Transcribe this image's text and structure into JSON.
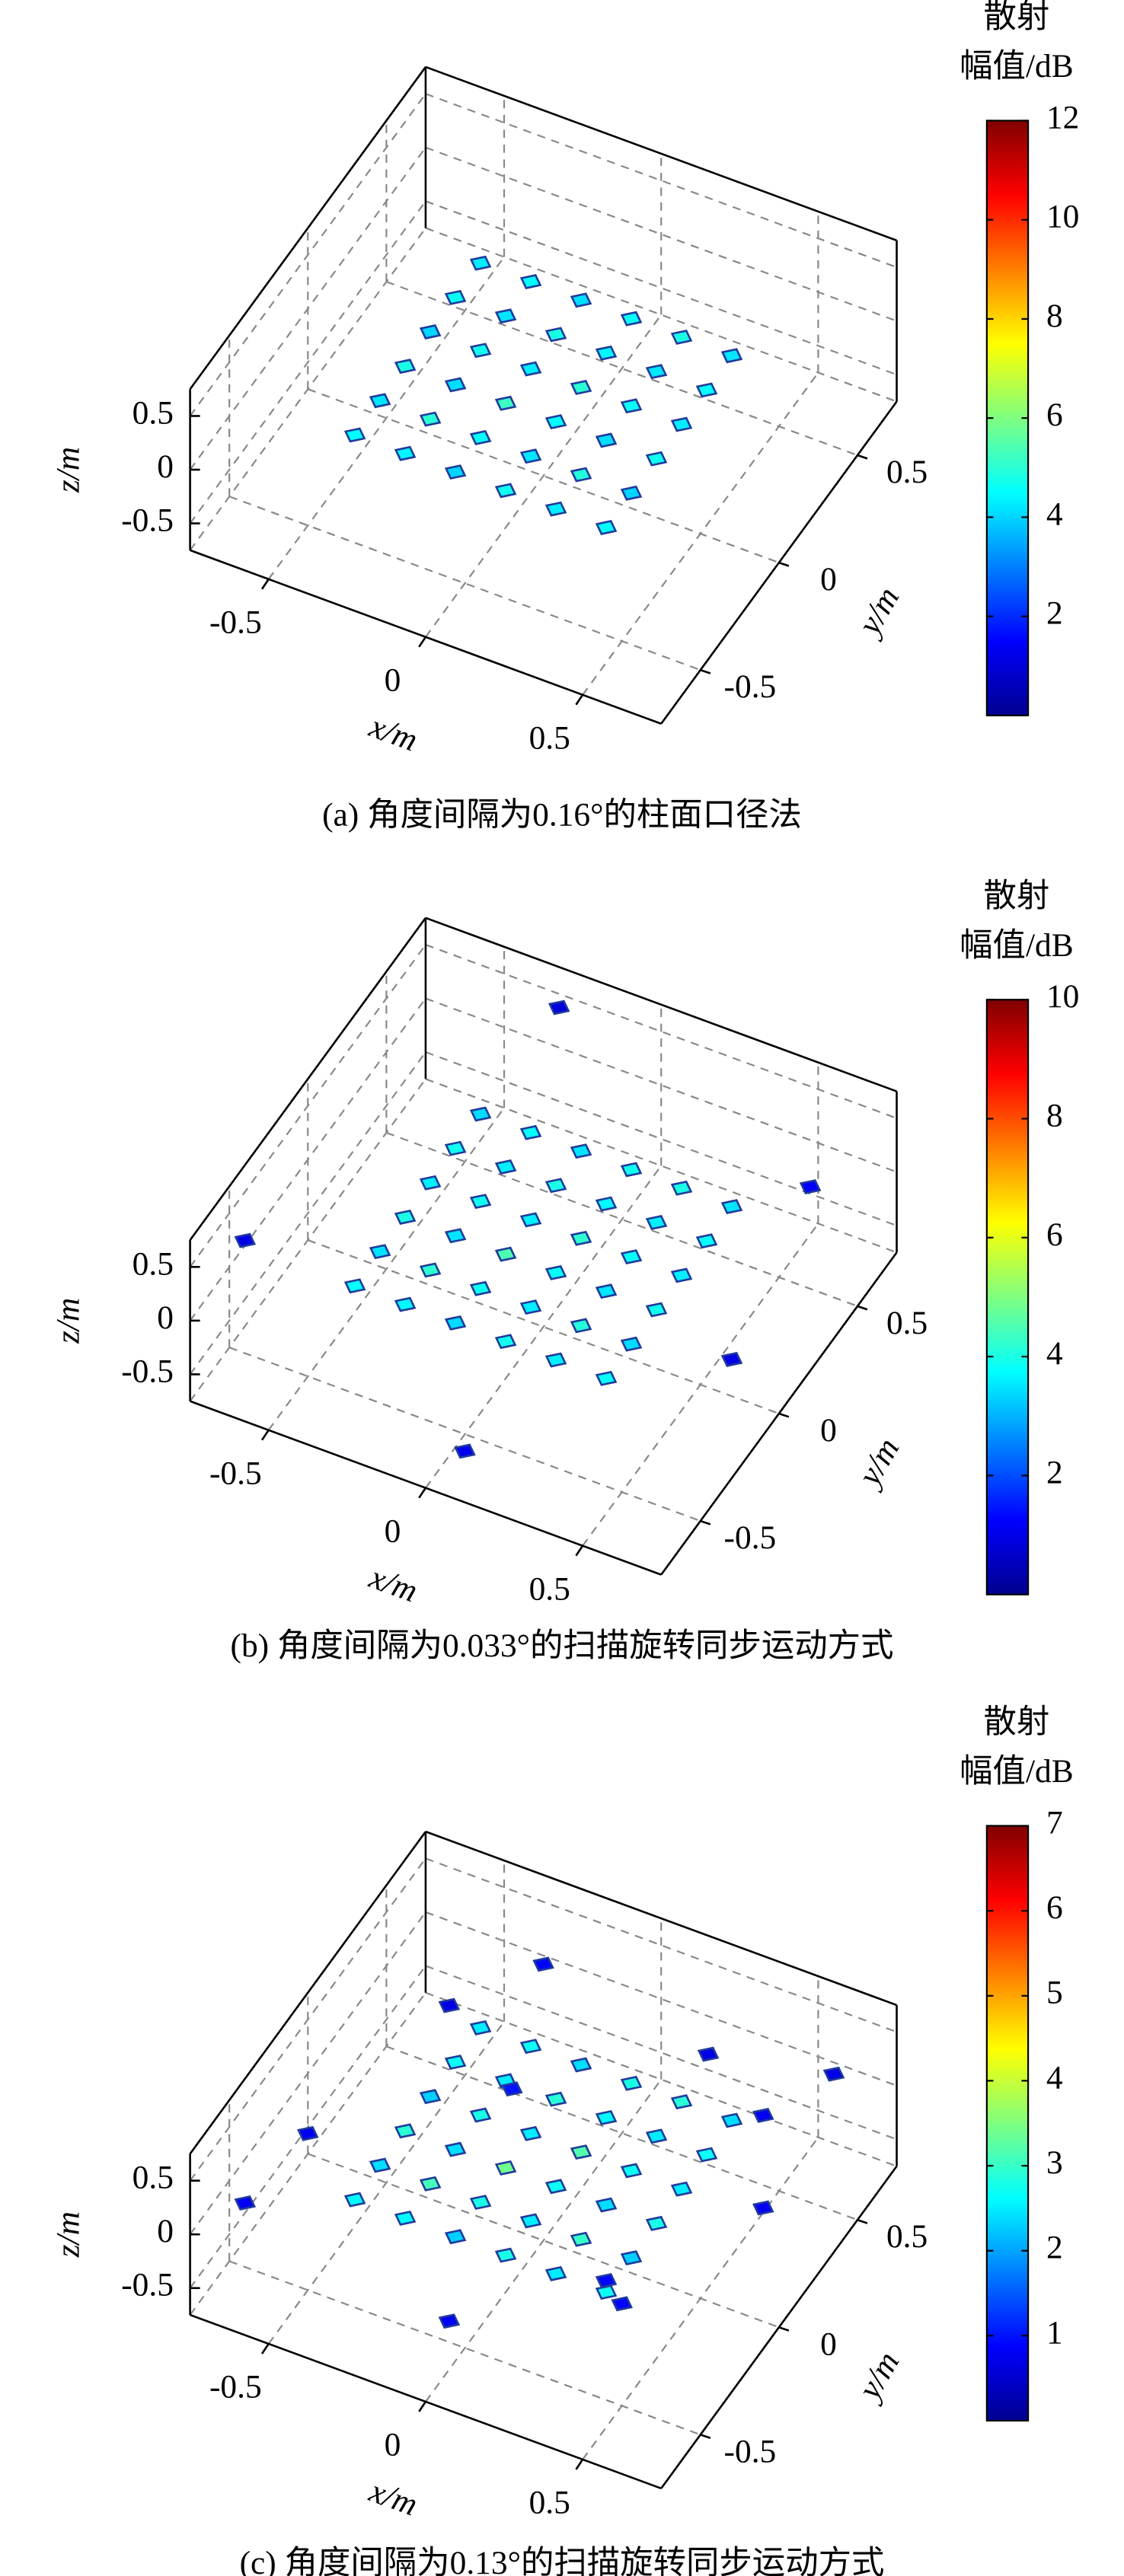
{
  "chart_data": [
    {
      "type": "scatter3d",
      "caption": "(a) 角度间隔为0.16°的柱面口径法",
      "xlabel": "x/m",
      "ylabel": "y/m",
      "zlabel": "z/m",
      "xlim": [
        -0.75,
        0.75
      ],
      "ylim": [
        -0.75,
        0.75
      ],
      "zlim": [
        -0.75,
        0.75
      ],
      "xticks": [
        -0.5,
        0,
        0.5
      ],
      "yticks": [
        -0.5,
        0,
        0.5
      ],
      "zticks": [
        -0.5,
        0,
        0.5
      ],
      "grid": true,
      "colormap": "jet",
      "colorbar_title": [
        "散射",
        "幅值/dB"
      ],
      "clim": [
        0,
        12
      ],
      "cticks": [
        2,
        4,
        6,
        8,
        10,
        12
      ],
      "points": {
        "x": [
          -0.4,
          -0.4,
          -0.4,
          -0.4,
          -0.4,
          -0.4,
          -0.24,
          -0.24,
          -0.24,
          -0.24,
          -0.24,
          -0.24,
          -0.08,
          -0.08,
          -0.08,
          -0.08,
          -0.08,
          -0.08,
          0.08,
          0.08,
          0.08,
          0.08,
          0.08,
          0.08,
          0.24,
          0.24,
          0.24,
          0.24,
          0.24,
          0.24,
          0.4,
          0.4,
          0.4,
          0.4,
          0.4,
          0.4
        ],
        "y": [
          -0.4,
          -0.24,
          -0.08,
          0.08,
          0.24,
          0.4,
          -0.4,
          -0.24,
          -0.08,
          0.08,
          0.24,
          0.4,
          -0.4,
          -0.24,
          -0.08,
          0.08,
          0.24,
          0.4,
          -0.4,
          -0.24,
          -0.08,
          0.08,
          0.24,
          0.4,
          -0.4,
          -0.24,
          -0.08,
          0.08,
          0.24,
          0.4,
          -0.4,
          -0.24,
          -0.08,
          0.08,
          0.24,
          0.4
        ],
        "z": [
          0,
          0,
          0,
          0,
          0,
          0,
          0,
          0,
          0,
          0,
          0,
          0,
          0,
          0,
          0,
          0,
          0,
          0,
          0,
          0,
          0,
          0,
          0,
          0,
          0,
          0,
          0,
          0,
          0,
          0,
          0,
          0,
          0,
          0,
          0,
          0
        ],
        "values": [
          4.5,
          4.2,
          4.8,
          4.0,
          4.6,
          4.3,
          4.4,
          5.0,
          4.1,
          4.7,
          4.2,
          4.5,
          4.0,
          4.6,
          5.2,
          4.3,
          4.8,
          4.1,
          4.7,
          4.2,
          4.5,
          5.0,
          4.4,
          4.6,
          4.3,
          4.9,
          4.1,
          4.6,
          4.2,
          4.8,
          4.5,
          4.0,
          4.7,
          4.3,
          4.5,
          4.2
        ]
      }
    },
    {
      "type": "scatter3d",
      "caption": "(b) 角度间隔为0.033°的扫描旋转同步运动方式",
      "xlabel": "x/m",
      "ylabel": "y/m",
      "zlabel": "z/m",
      "xlim": [
        -0.75,
        0.75
      ],
      "ylim": [
        -0.75,
        0.75
      ],
      "zlim": [
        -0.75,
        0.75
      ],
      "xticks": [
        -0.5,
        0,
        0.5
      ],
      "yticks": [
        -0.5,
        0,
        0.5
      ],
      "zticks": [
        -0.5,
        0,
        0.5
      ],
      "grid": true,
      "colormap": "jet",
      "colorbar_title": [
        "散射",
        "幅值/dB"
      ],
      "clim": [
        0,
        10
      ],
      "cticks": [
        2,
        4,
        6,
        8,
        10
      ],
      "points": {
        "x": [
          -0.4,
          -0.4,
          -0.4,
          -0.4,
          -0.4,
          -0.4,
          -0.24,
          -0.24,
          -0.24,
          -0.24,
          -0.24,
          -0.24,
          -0.08,
          -0.08,
          -0.08,
          -0.08,
          -0.08,
          -0.08,
          0.08,
          0.08,
          0.08,
          0.08,
          0.08,
          0.08,
          0.24,
          0.24,
          0.24,
          0.24,
          0.24,
          0.24,
          0.4,
          0.4,
          0.4,
          0.4,
          0.4,
          0.4,
          -0.7,
          0.6,
          -0.3,
          0.1,
          0.7
        ],
        "y": [
          -0.4,
          -0.24,
          -0.08,
          0.08,
          0.24,
          0.4,
          -0.4,
          -0.24,
          -0.08,
          0.08,
          0.24,
          0.4,
          -0.4,
          -0.24,
          -0.08,
          0.08,
          0.24,
          0.4,
          -0.4,
          -0.24,
          -0.08,
          0.08,
          0.24,
          0.4,
          -0.4,
          -0.24,
          -0.08,
          0.08,
          0.24,
          0.4,
          -0.4,
          -0.24,
          -0.08,
          0.08,
          0.24,
          0.4,
          -0.5,
          0.5,
          0.7,
          -0.7,
          -0.2
        ],
        "z": [
          0,
          0,
          0,
          0,
          0,
          0,
          0,
          0,
          0,
          0,
          0,
          0,
          0,
          0,
          0,
          0,
          0,
          0,
          0,
          0,
          0,
          0,
          0,
          0,
          0,
          0,
          0,
          0,
          0,
          0,
          0,
          0,
          0,
          0,
          0,
          0,
          0.3,
          0.2,
          0.5,
          -0.4,
          0.1
        ],
        "values": [
          3.8,
          3.5,
          4.0,
          3.6,
          3.9,
          3.4,
          3.7,
          4.2,
          3.5,
          3.9,
          3.6,
          3.8,
          3.4,
          3.9,
          4.5,
          3.6,
          4.0,
          3.5,
          3.9,
          3.6,
          3.8,
          4.2,
          3.7,
          3.9,
          3.6,
          4.1,
          3.5,
          3.8,
          3.6,
          4.0,
          3.8,
          3.4,
          3.9,
          3.6,
          3.8,
          3.5,
          1.0,
          1.2,
          0.9,
          1.1,
          1.0
        ]
      }
    },
    {
      "type": "scatter3d",
      "caption": "(c) 角度间隔为0.13°的扫描旋转同步运动方式",
      "xlabel": "x/m",
      "ylabel": "y/m",
      "zlabel": "z/m",
      "xlim": [
        -0.75,
        0.75
      ],
      "ylim": [
        -0.75,
        0.75
      ],
      "zlim": [
        -0.75,
        0.75
      ],
      "xticks": [
        -0.5,
        0,
        0.5
      ],
      "yticks": [
        -0.5,
        0,
        0.5
      ],
      "zticks": [
        -0.5,
        0,
        0.5
      ],
      "grid": true,
      "colormap": "jet",
      "colorbar_title": [
        "散射",
        "幅值/dB"
      ],
      "clim": [
        0,
        7
      ],
      "cticks": [
        1,
        2,
        3,
        4,
        5,
        6,
        7
      ],
      "points": {
        "x": [
          -0.4,
          -0.4,
          -0.4,
          -0.4,
          -0.4,
          -0.4,
          -0.24,
          -0.24,
          -0.24,
          -0.24,
          -0.24,
          -0.24,
          -0.08,
          -0.08,
          -0.08,
          -0.08,
          -0.08,
          -0.08,
          0.08,
          0.08,
          0.08,
          0.08,
          0.08,
          0.08,
          0.24,
          0.24,
          0.24,
          0.24,
          0.24,
          0.24,
          0.4,
          0.4,
          0.4,
          0.4,
          0.4,
          0.4,
          -0.6,
          -0.5,
          -0.3,
          0.0,
          0.2,
          0.5,
          0.6,
          0.65,
          -0.65,
          0.3,
          -0.15,
          0.45
        ],
        "y": [
          -0.4,
          -0.24,
          -0.08,
          0.08,
          0.24,
          0.4,
          -0.4,
          -0.24,
          -0.08,
          0.08,
          0.24,
          0.4,
          -0.4,
          -0.24,
          -0.08,
          0.08,
          0.24,
          0.4,
          -0.4,
          -0.24,
          -0.08,
          0.08,
          0.24,
          0.4,
          -0.4,
          -0.24,
          -0.08,
          0.08,
          0.24,
          0.4,
          -0.4,
          -0.24,
          -0.08,
          0.08,
          0.24,
          0.4,
          -0.3,
          0.4,
          0.6,
          -0.6,
          0.65,
          -0.5,
          0.2,
          0.55,
          -0.6,
          -0.2,
          0.1,
          0.5
        ],
        "z": [
          0,
          0,
          0,
          0,
          0,
          0,
          0,
          0,
          0,
          0,
          0,
          0,
          0,
          0,
          0,
          0,
          0,
          0,
          0,
          0,
          0,
          0,
          0,
          0,
          0,
          0,
          0,
          0,
          0,
          0,
          0,
          0,
          0,
          0,
          0,
          0,
          0.2,
          0.1,
          0.3,
          -0.3,
          -0.1,
          0.2,
          -0.2,
          0.4,
          0.1,
          -0.4,
          0.3,
          -0.1
        ],
        "values": [
          2.6,
          2.4,
          2.9,
          2.3,
          2.7,
          2.5,
          2.6,
          3.1,
          2.4,
          2.8,
          2.5,
          2.7,
          2.3,
          2.8,
          3.4,
          2.5,
          2.9,
          2.4,
          2.8,
          2.5,
          2.7,
          3.2,
          2.6,
          2.8,
          2.5,
          3.0,
          2.4,
          2.7,
          2.5,
          2.9,
          2.7,
          2.3,
          2.8,
          2.5,
          2.7,
          2.4,
          0.8,
          0.7,
          0.9,
          0.8,
          0.7,
          0.9,
          0.8,
          0.7,
          0.8,
          0.9,
          1.0,
          0.8
        ]
      }
    }
  ]
}
